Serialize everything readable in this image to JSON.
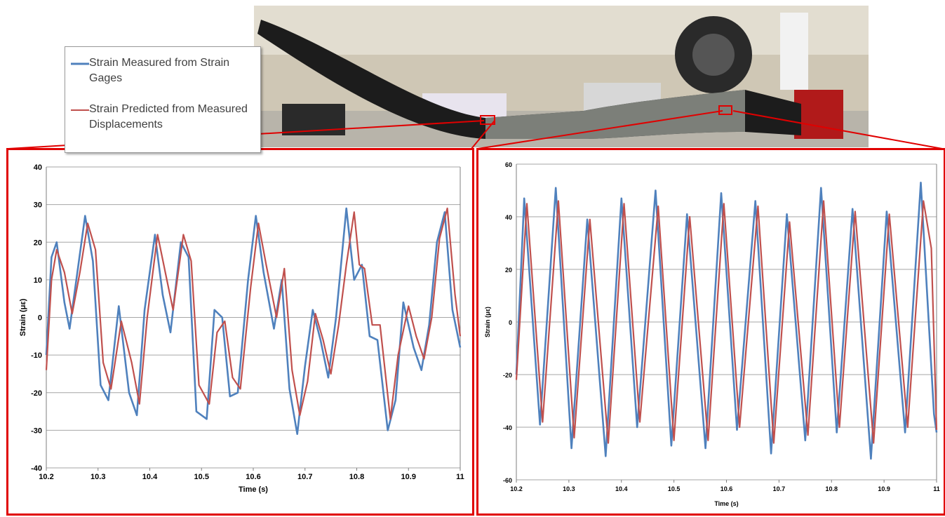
{
  "legend": {
    "items": [
      {
        "label": "Strain Measured from Strain Gages",
        "color": "#4f81bd"
      },
      {
        "label": "Strain Predicted from Measured Displacements",
        "color": "#c0504d"
      }
    ]
  },
  "colors": {
    "frame": "#e00000",
    "measured": "#4f81bd",
    "predicted": "#c0504d",
    "grid": "#a6a6a6"
  },
  "chart_data": [
    {
      "type": "line",
      "xlabel": "Time (s)",
      "ylabel": "Strain (με)",
      "xlim": [
        10.2,
        11
      ],
      "ylim": [
        -40,
        40
      ],
      "xticks": [
        "10.2",
        "10.3",
        "10.4",
        "10.5",
        "10.6",
        "10.7",
        "10.8",
        "10.9",
        "11"
      ],
      "yticks": [
        "40",
        "30",
        "20",
        "10",
        "0",
        "-10",
        "-20",
        "-30",
        "-40"
      ],
      "grid": "horizontal",
      "series": [
        {
          "name": "Strain Measured from Strain Gages",
          "x": [
            10.2,
            10.21,
            10.22,
            10.235,
            10.245,
            10.26,
            10.275,
            10.29,
            10.305,
            10.32,
            10.34,
            10.36,
            10.375,
            10.39,
            10.41,
            10.425,
            10.44,
            10.46,
            10.475,
            10.49,
            10.51,
            10.525,
            10.54,
            10.555,
            10.57,
            10.59,
            10.605,
            10.62,
            10.64,
            10.655,
            10.67,
            10.685,
            10.7,
            10.715,
            10.73,
            10.745,
            10.76,
            10.78,
            10.795,
            10.81,
            10.825,
            10.84,
            10.86,
            10.875,
            10.89,
            10.91,
            10.925,
            10.94,
            10.955,
            10.97,
            10.985,
            11
          ],
          "y": [
            -10,
            16,
            20,
            4,
            -3,
            12,
            27,
            15,
            -18,
            -22,
            3,
            -20,
            -26,
            2,
            22,
            6,
            -4,
            20,
            16,
            -25,
            -27,
            2,
            0,
            -21,
            -20,
            10,
            27,
            12,
            -3,
            10,
            -19,
            -31,
            -13,
            2,
            -6,
            -16,
            0,
            29,
            10,
            14,
            -5,
            -6,
            -30,
            -22,
            4,
            -8,
            -14,
            -2,
            20,
            28,
            2,
            -8
          ]
        },
        {
          "name": "Strain Predicted from Measured Displacements",
          "x": [
            10.2,
            10.21,
            10.22,
            10.235,
            10.25,
            10.265,
            10.28,
            10.295,
            10.31,
            10.325,
            10.345,
            10.365,
            10.38,
            10.395,
            10.415,
            10.43,
            10.445,
            10.465,
            10.48,
            10.495,
            10.515,
            10.53,
            10.545,
            10.56,
            10.575,
            10.595,
            10.61,
            10.625,
            10.645,
            10.66,
            10.675,
            10.69,
            10.705,
            10.72,
            10.735,
            10.75,
            10.765,
            10.78,
            10.795,
            10.805,
            10.815,
            10.83,
            10.845,
            10.865,
            10.88,
            10.9,
            10.915,
            10.93,
            10.945,
            10.96,
            10.975,
            10.99,
            11
          ],
          "y": [
            -14,
            10,
            18,
            12,
            1,
            12,
            25,
            18,
            -12,
            -19,
            -1,
            -12,
            -23,
            0,
            22,
            12,
            2,
            22,
            15,
            -18,
            -23,
            -4,
            -1,
            -16,
            -19,
            8,
            25,
            14,
            0,
            13,
            -14,
            -26,
            -17,
            1,
            -6,
            -15,
            -2,
            14,
            28,
            14,
            13,
            -2,
            -2,
            -27,
            -10,
            3,
            -5,
            -11,
            0,
            21,
            29,
            6,
            -5
          ]
        }
      ]
    },
    {
      "type": "line",
      "xlabel": "Time (s)",
      "ylabel": "Strain (με)",
      "xlim": [
        10.2,
        11
      ],
      "ylim": [
        -60,
        60
      ],
      "xticks": [
        "10.2",
        "10.3",
        "10.4",
        "10.5",
        "10.6",
        "10.7",
        "10.8",
        "10.9",
        "11"
      ],
      "yticks": [
        "60",
        "40",
        "20",
        "0",
        "-20",
        "-40",
        "-60"
      ],
      "grid": "horizontal",
      "series": [
        {
          "name": "Strain Measured from Strain Gages",
          "x": [
            10.2,
            10.215,
            10.245,
            10.275,
            10.305,
            10.335,
            10.37,
            10.4,
            10.43,
            10.465,
            10.495,
            10.525,
            10.56,
            10.59,
            10.62,
            10.655,
            10.685,
            10.715,
            10.75,
            10.78,
            10.81,
            10.84,
            10.875,
            10.905,
            10.94,
            10.97,
            10.995,
            11
          ],
          "y": [
            -20,
            47,
            -39,
            51,
            -48,
            39,
            -51,
            47,
            -40,
            50,
            -47,
            41,
            -48,
            49,
            -41,
            46,
            -50,
            41,
            -45,
            51,
            -42,
            43,
            -52,
            42,
            -42,
            53,
            -35,
            -42
          ]
        },
        {
          "name": "Strain Predicted from Measured Displacements",
          "x": [
            10.2,
            10.22,
            10.25,
            10.28,
            10.31,
            10.34,
            10.375,
            10.405,
            10.435,
            10.47,
            10.5,
            10.53,
            10.565,
            10.595,
            10.625,
            10.66,
            10.69,
            10.72,
            10.755,
            10.785,
            10.815,
            10.845,
            10.88,
            10.91,
            10.945,
            10.975,
            10.99,
            11
          ],
          "y": [
            -22,
            45,
            -38,
            46,
            -44,
            39,
            -46,
            45,
            -38,
            44,
            -45,
            40,
            -45,
            45,
            -40,
            44,
            -46,
            38,
            -43,
            46,
            -40,
            42,
            -46,
            41,
            -40,
            46,
            28,
            -41
          ]
        }
      ]
    }
  ]
}
